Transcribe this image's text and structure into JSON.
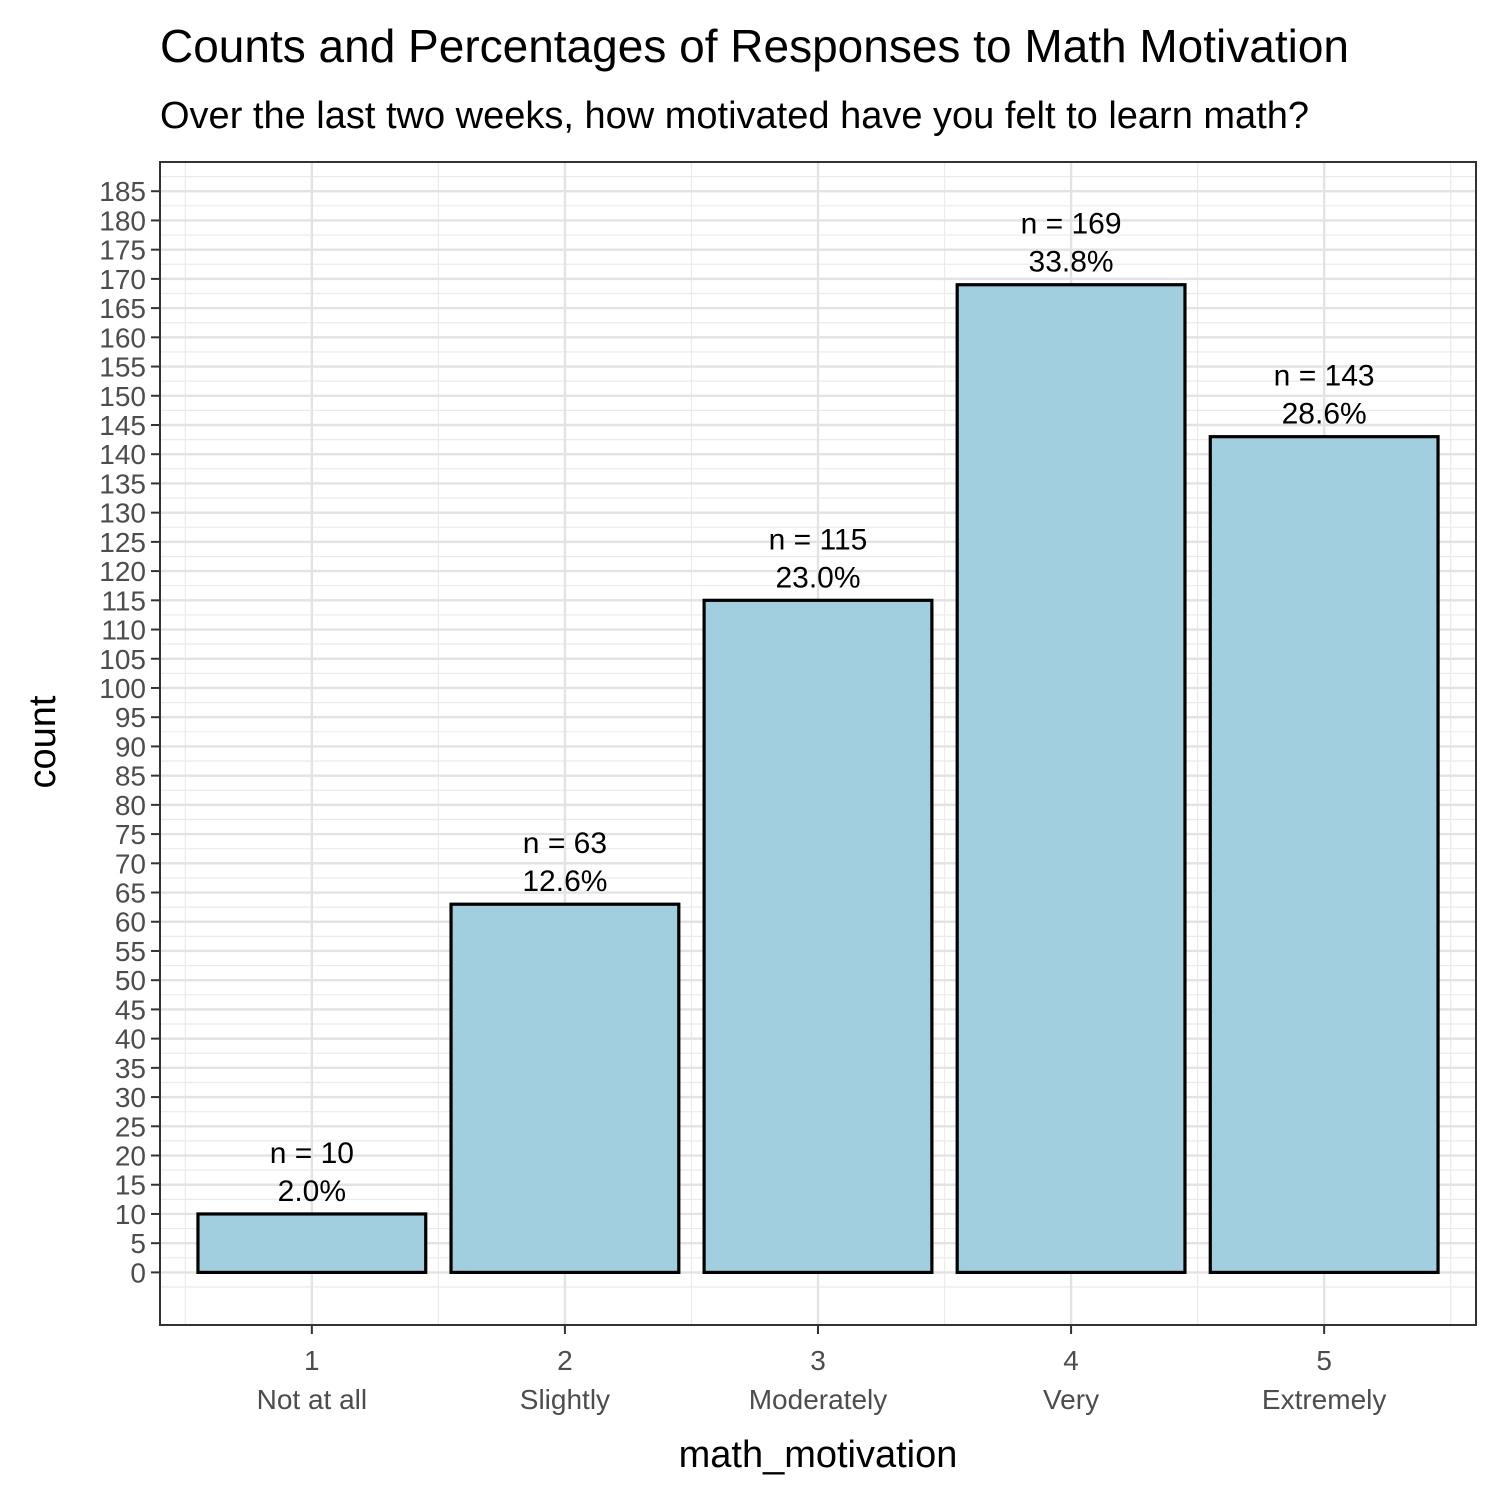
{
  "chart_data": {
    "type": "bar",
    "title": "Counts and Percentages of Responses to Math Motivation",
    "subtitle": "Over the last two weeks, how motivated have you felt to learn math?",
    "xlabel": "math_motivation",
    "ylabel": "count",
    "categories": [
      "1",
      "2",
      "3",
      "4",
      "5"
    ],
    "category_descriptions": [
      "Not at all",
      "Slightly",
      "Moderately",
      "Very",
      "Extremely"
    ],
    "values": [
      10,
      63,
      115,
      169,
      143
    ],
    "percentages": [
      "2.0%",
      "12.6%",
      "23.0%",
      "33.8%",
      "28.6%"
    ],
    "count_labels": [
      "n = 10",
      "n = 63",
      "n = 115",
      "n = 169",
      "n = 143"
    ],
    "ylim": [
      -9,
      190
    ],
    "yticks": [
      0,
      5,
      10,
      15,
      20,
      25,
      30,
      35,
      40,
      45,
      50,
      55,
      60,
      65,
      70,
      75,
      80,
      85,
      90,
      95,
      100,
      105,
      110,
      115,
      120,
      125,
      130,
      135,
      140,
      145,
      150,
      155,
      160,
      165,
      170,
      175,
      180,
      185
    ],
    "grid": true,
    "bar_color": "#a2cfe0",
    "bar_border_color": "#000000"
  }
}
